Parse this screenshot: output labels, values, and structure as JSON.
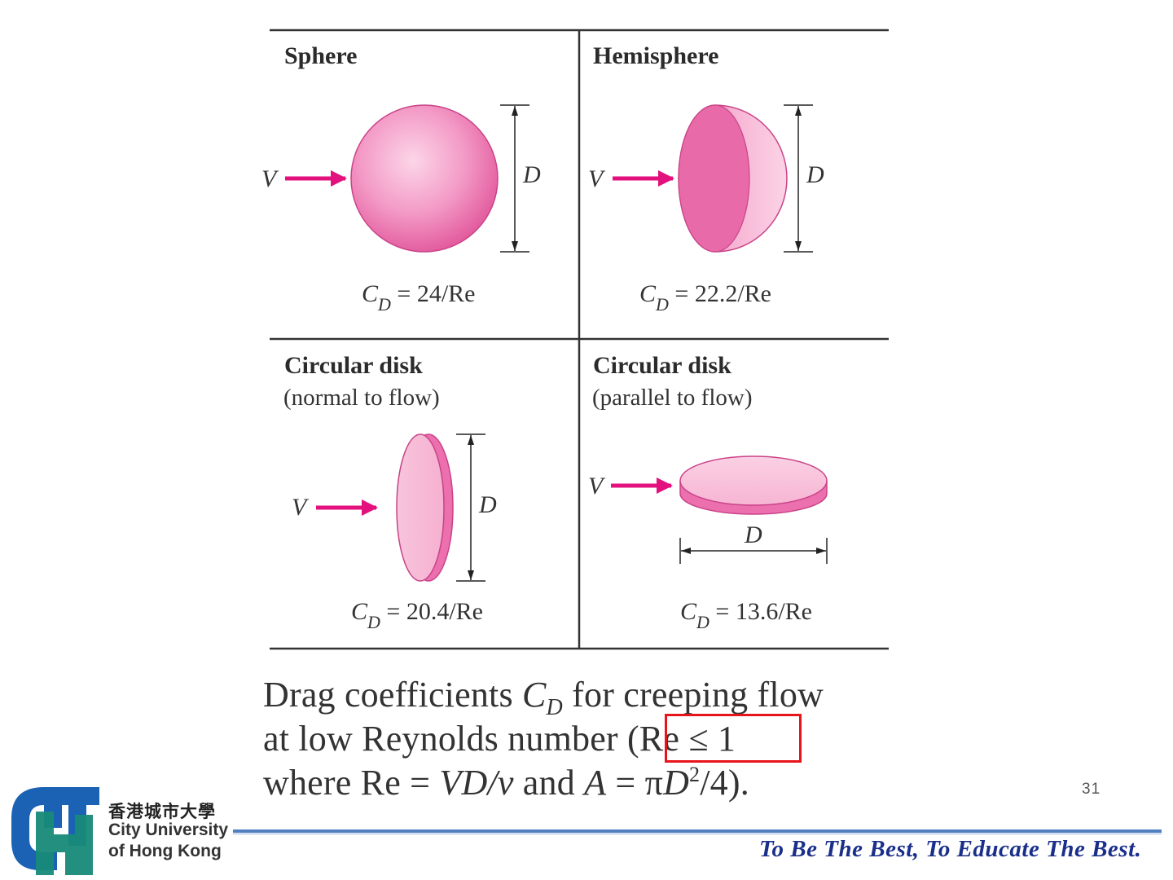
{
  "panels": [
    {
      "title": "Sphere",
      "subtitle": "",
      "velocity_label": "V",
      "dimension_label": "D",
      "formula": {
        "cd": "C",
        "cd_sub": "D",
        "rhs": " = 24/Re"
      }
    },
    {
      "title": "Hemisphere",
      "subtitle": "",
      "velocity_label": "V",
      "dimension_label": "D",
      "formula": {
        "cd": "C",
        "cd_sub": "D",
        "rhs": " = 22.2/Re"
      }
    },
    {
      "title": "Circular disk",
      "subtitle": "(normal to flow)",
      "velocity_label": "V",
      "dimension_label": "D",
      "formula": {
        "cd": "C",
        "cd_sub": "D",
        "rhs": " = 20.4/Re"
      }
    },
    {
      "title": "Circular disk",
      "subtitle": "(parallel to flow)",
      "velocity_label": "V",
      "dimension_label": "D",
      "formula": {
        "cd": "C",
        "cd_sub": "D",
        "rhs": " = 13.6/Re"
      }
    }
  ],
  "caption": {
    "line1_a": "Drag coefficients ",
    "line1_cd": "C",
    "line1_sub": "D",
    "line1_b": " for creeping flow",
    "line2": "at low Reynolds number (Re ≤ 1",
    "line3_a": "where Re = ",
    "line3_vdnu": "VD/ν",
    "line3_b": " and ",
    "line3_A": "A",
    "line3_c": " = π",
    "line3_D": "D",
    "line3_sup": "2",
    "line3_d": "/4)."
  },
  "page_number": "31",
  "university": {
    "name_zh": "香港城市大學",
    "name_en_line1": "City University",
    "name_en_line2": "of Hong Kong"
  },
  "motto": "To Be The Best, To Educate The Best.",
  "colors": {
    "shape_pink": "#ec6fae",
    "arrow_magenta": "#e3117d",
    "highlight_red": "#e8141c",
    "footer_blue": "#4f7fc0",
    "motto_blue": "#1a2f8a",
    "logo_blue": "#1b62b4",
    "logo_teal": "#178a78"
  }
}
